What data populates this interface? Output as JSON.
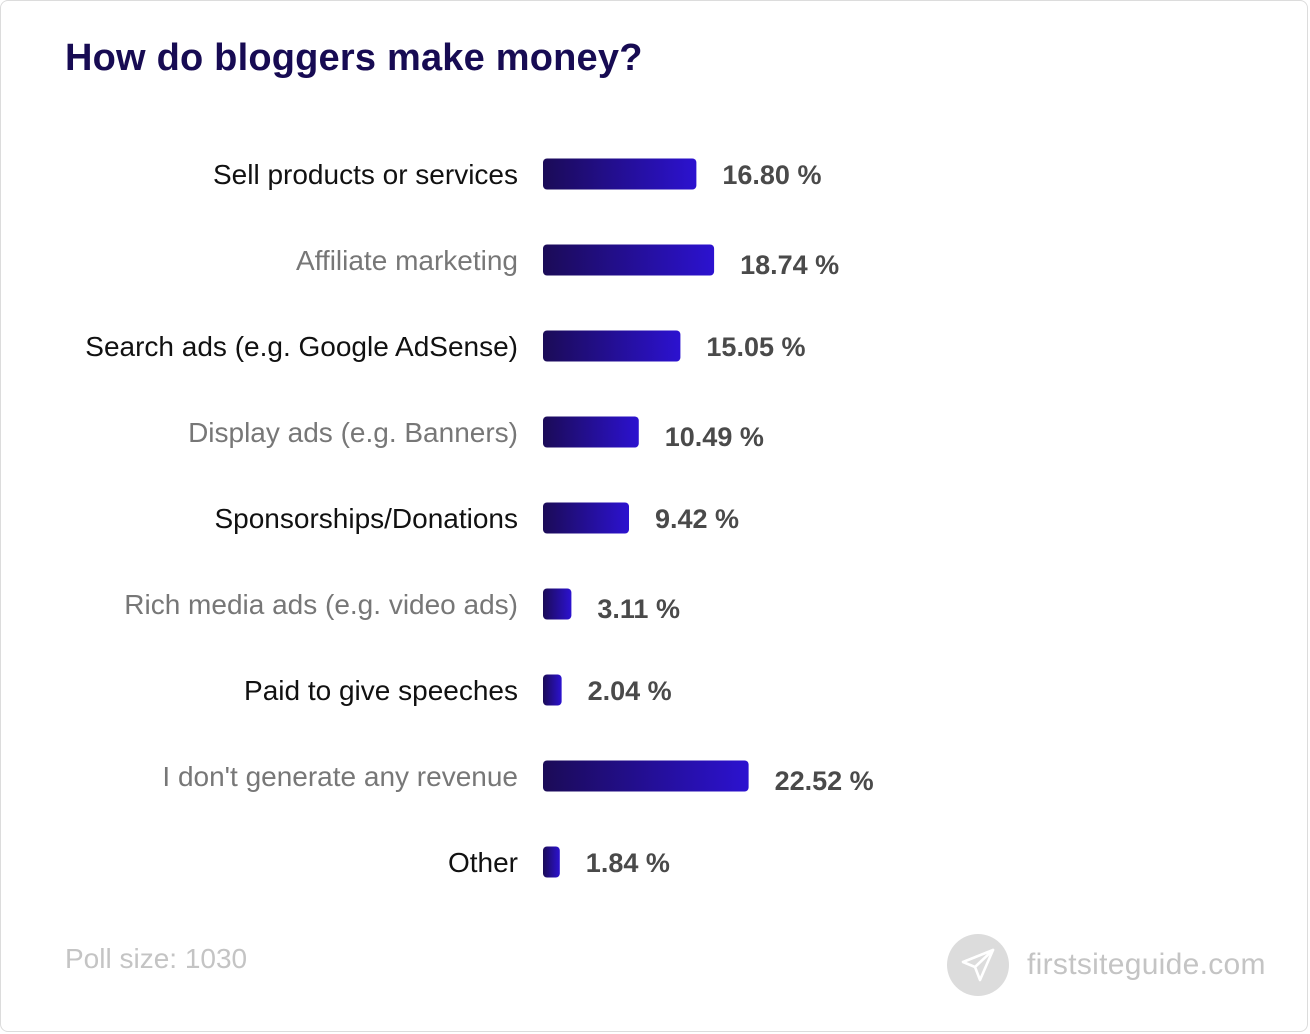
{
  "title": "How do bloggers make money?",
  "poll_size": "Poll size: 1030",
  "brand": {
    "name": "firstsiteguide.com",
    "icon": "paper-plane-icon"
  },
  "colors": {
    "title": "#170b53",
    "bar_start": "#1b0b57",
    "bar_end": "#2c12d0",
    "label_dark": "#111111",
    "label_grey": "#777777",
    "value": "#4a4a4a"
  },
  "chart_data": {
    "type": "bar",
    "orientation": "horizontal",
    "categories": [
      "Sell products or services",
      "Affiliate marketing",
      "Search ads (e.g. Google AdSense)",
      "Display ads (e.g. Banners)",
      "Sponsorships/Donations",
      "Rich media ads (e.g. video ads)",
      "Paid to give speeches",
      "I don't generate any revenue",
      "Other"
    ],
    "values": [
      16.8,
      18.74,
      15.05,
      10.49,
      9.42,
      3.11,
      2.04,
      22.52,
      1.84
    ],
    "value_labels": [
      "16.80 %",
      "18.74 %",
      "15.05 %",
      "10.49 %",
      "9.42 %",
      "3.11 %",
      "2.04 %",
      "22.52 %",
      "1.84 %"
    ],
    "unit": "%",
    "title": "How do bloggers make money?",
    "xlabel": "",
    "ylabel": "",
    "grid": false,
    "legend": "none"
  }
}
